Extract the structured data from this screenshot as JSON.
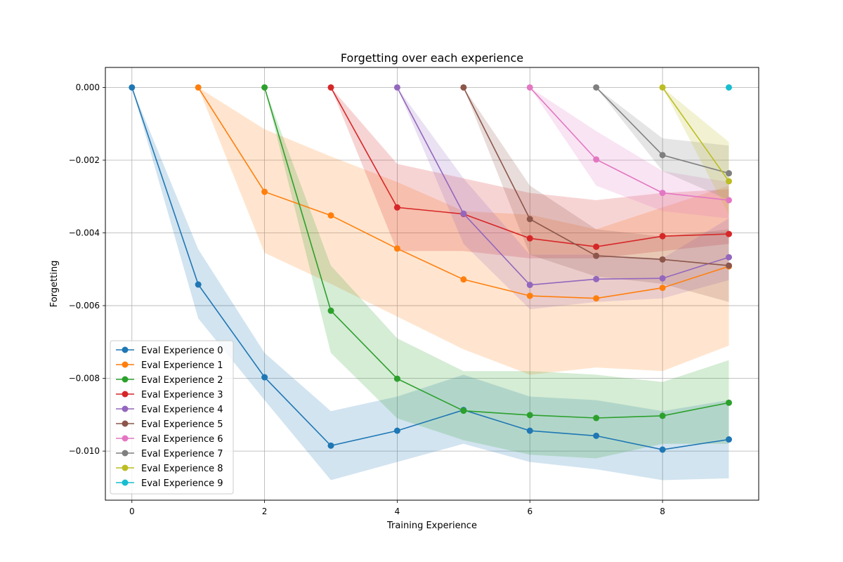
{
  "chart_data": {
    "type": "line",
    "title": "Forgetting over each experience",
    "xlabel": "Training Experience",
    "ylabel": "Forgetting",
    "xlim": [
      -0.4,
      9.45
    ],
    "ylim": [
      -0.01135,
      0.00055
    ],
    "xticks": [
      0,
      2,
      4,
      6,
      8
    ],
    "xtick_labels": [
      "0",
      "2",
      "4",
      "6",
      "8"
    ],
    "yticks": [
      0.0,
      -0.002,
      -0.004,
      -0.006,
      -0.008,
      -0.01
    ],
    "ytick_labels": [
      "0.000",
      "−0.002",
      "−0.004",
      "−0.006",
      "−0.008",
      "−0.010"
    ],
    "grid": true,
    "legend_position": "lower-left",
    "series": [
      {
        "name": "Eval Experience 0",
        "color": "#1f77b4",
        "x": [
          0,
          1,
          2,
          3,
          4,
          5,
          6,
          7,
          8,
          9
        ],
        "values": [
          0.0,
          -0.00542,
          -0.00797,
          -0.00985,
          -0.00944,
          -0.00887,
          -0.00944,
          -0.00958,
          -0.00996,
          -0.00968
        ],
        "lower": [
          0.0,
          -0.00635,
          -0.0086,
          -0.0108,
          -0.0103,
          -0.0098,
          -0.0103,
          -0.0105,
          -0.0108,
          -0.01075
        ],
        "upper": [
          0.0,
          -0.00445,
          -0.0073,
          -0.0089,
          -0.0085,
          -0.0079,
          -0.0085,
          -0.0086,
          -0.0089,
          -0.0086
        ]
      },
      {
        "name": "Eval Experience 1",
        "color": "#ff7f0e",
        "x": [
          1,
          2,
          3,
          4,
          5,
          6,
          7,
          8,
          9
        ],
        "values": [
          0.0,
          -0.00287,
          -0.00352,
          -0.00443,
          -0.00528,
          -0.00573,
          -0.0058,
          -0.00551,
          -0.00492
        ],
        "lower": [
          0.0,
          -0.00455,
          -0.0054,
          -0.0063,
          -0.0072,
          -0.0079,
          -0.0077,
          -0.0078,
          -0.0071
        ],
        "upper": [
          0.0,
          -0.00115,
          -0.0019,
          -0.0026,
          -0.0034,
          -0.0035,
          -0.0039,
          -0.0033,
          -0.0027
        ]
      },
      {
        "name": "Eval Experience 2",
        "color": "#2ca02c",
        "x": [
          2,
          3,
          4,
          5,
          6,
          7,
          8,
          9
        ],
        "values": [
          0.0,
          -0.00614,
          -0.00801,
          -0.00889,
          -0.00901,
          -0.00909,
          -0.00903,
          -0.00867
        ],
        "lower": [
          0.0,
          -0.0073,
          -0.0091,
          -0.0097,
          -0.0101,
          -0.0102,
          -0.0098,
          -0.0098
        ],
        "upper": [
          0.0,
          -0.0049,
          -0.0069,
          -0.0078,
          -0.0078,
          -0.0079,
          -0.0081,
          -0.0075
        ]
      },
      {
        "name": "Eval Experience 3",
        "color": "#d62728",
        "x": [
          3,
          4,
          5,
          6,
          7,
          8,
          9
        ],
        "values": [
          0.0,
          -0.0033,
          -0.00348,
          -0.00415,
          -0.00438,
          -0.00409,
          -0.00403
        ],
        "lower": [
          0.0,
          -0.0045,
          -0.0045,
          -0.0047,
          -0.0047,
          -0.0045,
          -0.0043
        ],
        "upper": [
          0.0,
          -0.0021,
          -0.0025,
          -0.0029,
          -0.0031,
          -0.0029,
          -0.0028
        ]
      },
      {
        "name": "Eval Experience 4",
        "color": "#9467bd",
        "x": [
          4,
          5,
          6,
          7,
          8,
          9
        ],
        "values": [
          0.0,
          -0.00347,
          -0.00543,
          -0.00527,
          -0.00525,
          -0.00467
        ],
        "lower": [
          0.0,
          -0.0043,
          -0.0061,
          -0.0059,
          -0.0058,
          -0.0053
        ],
        "upper": [
          0.0,
          -0.0025,
          -0.0046,
          -0.0046,
          -0.0047,
          -0.0036
        ]
      },
      {
        "name": "Eval Experience 5",
        "color": "#8c564b",
        "x": [
          5,
          6,
          7,
          8,
          9
        ],
        "values": [
          0.0,
          -0.00362,
          -0.00463,
          -0.00473,
          -0.0049
        ],
        "lower": [
          0.0,
          -0.0046,
          -0.0052,
          -0.0054,
          -0.0059
        ],
        "upper": [
          0.0,
          -0.0027,
          -0.0039,
          -0.0041,
          -0.0039
        ]
      },
      {
        "name": "Eval Experience 6",
        "color": "#e377c2",
        "x": [
          6,
          7,
          8,
          9
        ],
        "values": [
          0.0,
          -0.00198,
          -0.0029,
          -0.0031
        ],
        "lower": [
          0.0,
          -0.0027,
          -0.0034,
          -0.0036
        ],
        "upper": [
          0.0,
          -0.0012,
          -0.0023,
          -0.0026
        ]
      },
      {
        "name": "Eval Experience 7",
        "color": "#7f7f7f",
        "x": [
          7,
          8,
          9
        ],
        "values": [
          0.0,
          -0.00186,
          -0.00236
        ],
        "lower": [
          0.0,
          -0.0023,
          -0.0031
        ],
        "upper": [
          0.0,
          -0.0014,
          -0.0016
        ]
      },
      {
        "name": "Eval Experience 8",
        "color": "#bcbd22",
        "x": [
          8,
          9
        ],
        "values": [
          0.0,
          -0.00258
        ],
        "lower": [
          0.0,
          -0.0035
        ],
        "upper": [
          0.0,
          -0.0015
        ]
      },
      {
        "name": "Eval Experience 9",
        "color": "#17becf",
        "x": [
          9
        ],
        "values": [
          0.0
        ],
        "lower": [
          0.0
        ],
        "upper": [
          0.0
        ]
      }
    ]
  }
}
